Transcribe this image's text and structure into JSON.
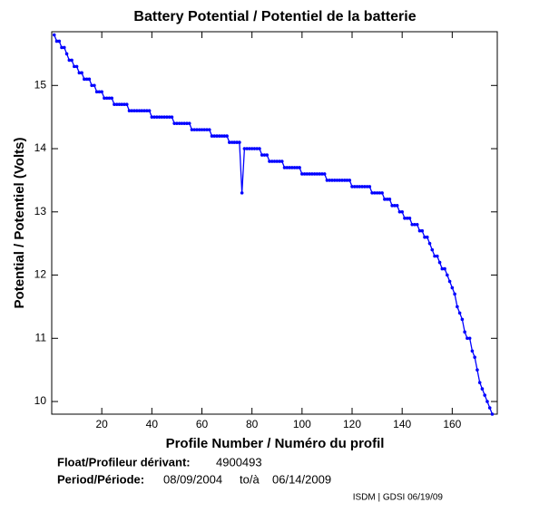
{
  "chart_data": {
    "type": "line",
    "title": "Battery Potential / Potentiel de la batterie",
    "xlabel": "Profile Number / Numéro du profil",
    "ylabel": "Potential / Potentiel (Volts)",
    "x": [
      1,
      2,
      3,
      4,
      5,
      6,
      7,
      8,
      9,
      10,
      11,
      12,
      13,
      14,
      15,
      16,
      17,
      18,
      19,
      20,
      21,
      22,
      23,
      24,
      25,
      26,
      27,
      28,
      29,
      30,
      31,
      32,
      33,
      34,
      35,
      36,
      37,
      38,
      39,
      40,
      41,
      42,
      43,
      44,
      45,
      46,
      47,
      48,
      49,
      50,
      51,
      52,
      53,
      54,
      55,
      56,
      57,
      58,
      59,
      60,
      61,
      62,
      63,
      64,
      65,
      66,
      67,
      68,
      69,
      70,
      71,
      72,
      73,
      74,
      75,
      76,
      77,
      78,
      79,
      80,
      81,
      82,
      83,
      84,
      85,
      86,
      87,
      88,
      89,
      90,
      91,
      92,
      93,
      94,
      95,
      96,
      97,
      98,
      99,
      100,
      101,
      102,
      103,
      104,
      105,
      106,
      107,
      108,
      109,
      110,
      111,
      112,
      113,
      114,
      115,
      116,
      117,
      118,
      119,
      120,
      121,
      122,
      123,
      124,
      125,
      126,
      127,
      128,
      129,
      130,
      131,
      132,
      133,
      134,
      135,
      136,
      137,
      138,
      139,
      140,
      141,
      142,
      143,
      144,
      145,
      146,
      147,
      148,
      149,
      150,
      151,
      152,
      153,
      154,
      155,
      156,
      157,
      158,
      159,
      160,
      161,
      162,
      163,
      164,
      165,
      166,
      167,
      168,
      169,
      170,
      171,
      172,
      173,
      174,
      175,
      176
    ],
    "series": [
      {
        "name": "Battery Potential",
        "color": "#0000ff",
        "values": [
          15.8,
          15.7,
          15.7,
          15.6,
          15.6,
          15.5,
          15.4,
          15.4,
          15.3,
          15.3,
          15.2,
          15.2,
          15.1,
          15.1,
          15.1,
          15.0,
          15.0,
          14.9,
          14.9,
          14.9,
          14.8,
          14.8,
          14.8,
          14.8,
          14.7,
          14.7,
          14.7,
          14.7,
          14.7,
          14.7,
          14.6,
          14.6,
          14.6,
          14.6,
          14.6,
          14.6,
          14.6,
          14.6,
          14.6,
          14.5,
          14.5,
          14.5,
          14.5,
          14.5,
          14.5,
          14.5,
          14.5,
          14.5,
          14.4,
          14.4,
          14.4,
          14.4,
          14.4,
          14.4,
          14.4,
          14.3,
          14.3,
          14.3,
          14.3,
          14.3,
          14.3,
          14.3,
          14.3,
          14.2,
          14.2,
          14.2,
          14.2,
          14.2,
          14.2,
          14.2,
          14.1,
          14.1,
          14.1,
          14.1,
          14.1,
          13.3,
          14.0,
          14.0,
          14.0,
          14.0,
          14.0,
          14.0,
          14.0,
          13.9,
          13.9,
          13.9,
          13.8,
          13.8,
          13.8,
          13.8,
          13.8,
          13.8,
          13.7,
          13.7,
          13.7,
          13.7,
          13.7,
          13.7,
          13.7,
          13.6,
          13.6,
          13.6,
          13.6,
          13.6,
          13.6,
          13.6,
          13.6,
          13.6,
          13.6,
          13.5,
          13.5,
          13.5,
          13.5,
          13.5,
          13.5,
          13.5,
          13.5,
          13.5,
          13.5,
          13.4,
          13.4,
          13.4,
          13.4,
          13.4,
          13.4,
          13.4,
          13.4,
          13.3,
          13.3,
          13.3,
          13.3,
          13.3,
          13.2,
          13.2,
          13.2,
          13.1,
          13.1,
          13.1,
          13.0,
          13.0,
          12.9,
          12.9,
          12.9,
          12.8,
          12.8,
          12.8,
          12.7,
          12.7,
          12.6,
          12.6,
          12.5,
          12.4,
          12.3,
          12.3,
          12.2,
          12.1,
          12.1,
          12.0,
          11.9,
          11.8,
          11.7,
          11.5,
          11.4,
          11.3,
          11.1,
          11.0,
          11.0,
          10.8,
          10.7,
          10.5,
          10.3,
          10.2,
          10.1,
          10.0,
          9.9,
          9.8
        ]
      }
    ],
    "xlim": [
      0,
      178
    ],
    "xticks": [
      20,
      40,
      60,
      80,
      100,
      120,
      140,
      160
    ],
    "ylim": [
      9.8,
      15.85
    ],
    "yticks": [
      10,
      11,
      12,
      13,
      14,
      15
    ],
    "grid": false
  },
  "info": {
    "float_label": "Float/Profileur dérivant:",
    "float_value": "4900493",
    "period_label": "Period/Période:",
    "period_start": "08/09/2004",
    "period_to": "to/à",
    "period_end": "06/14/2009",
    "credit": "ISDM | GDSI 06/19/09"
  }
}
